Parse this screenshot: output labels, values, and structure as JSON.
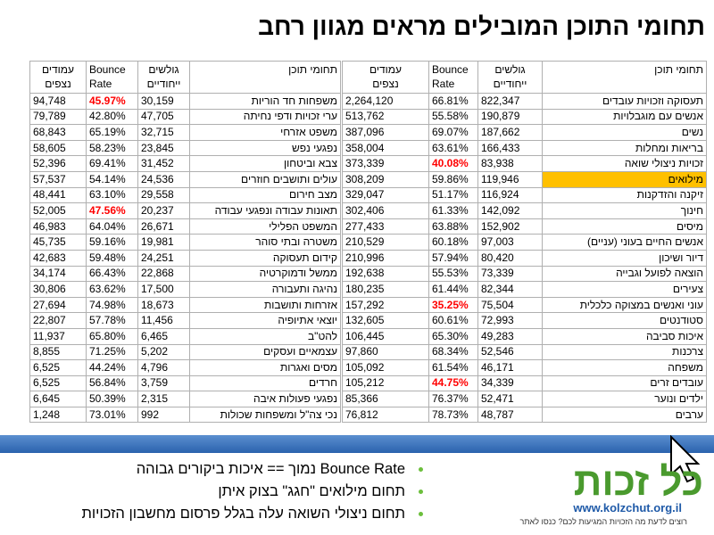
{
  "title": "תחומי התוכן המובילים מראים מגוון רחב",
  "alert_color": "#ff0000",
  "highlight_color": "#ffc000",
  "tables": [
    {
      "header": [
        [
          "תחומי תוכן"
        ],
        [
          "גולשים",
          "ייחודיים"
        ],
        [
          "Bounce",
          "Rate"
        ],
        [
          "עמודים",
          "נצפים"
        ]
      ],
      "alert_rows": [
        4,
        13,
        18
      ],
      "highlight_rows": [
        5
      ],
      "rows": [
        [
          "תעסוקה וזכויות עובדים",
          "822,347",
          "66.81%",
          "2,264,120"
        ],
        [
          "אנשים עם מוגבלויות",
          "190,879",
          "55.58%",
          "513,762"
        ],
        [
          "נשים",
          "187,662",
          "69.07%",
          "387,096"
        ],
        [
          "בריאות ומחלות",
          "166,433",
          "63.61%",
          "358,004"
        ],
        [
          "זכויות ניצולי שואה",
          "83,938",
          "40.08%",
          "373,339"
        ],
        [
          "מילואים",
          "119,946",
          "59.86%",
          "308,209"
        ],
        [
          "זיקנה והזדקנות",
          "116,924",
          "51.17%",
          "329,047"
        ],
        [
          "חינוך",
          "142,092",
          "61.33%",
          "302,406"
        ],
        [
          "מיסים",
          "152,902",
          "63.88%",
          "277,433"
        ],
        [
          "אנשים החיים בעוני (עניים)",
          "97,003",
          "60.18%",
          "210,529"
        ],
        [
          "דיור ושיכון",
          "80,420",
          "57.94%",
          "210,996"
        ],
        [
          "הוצאה לפועל וגבייה",
          "73,339",
          "55.53%",
          "192,638"
        ],
        [
          "צעירים",
          "82,344",
          "61.44%",
          "180,235"
        ],
        [
          "עוני ואנשים במצוקה כלכלית",
          "75,504",
          "35.25%",
          "157,292"
        ],
        [
          "סטודנטים",
          "72,993",
          "60.61%",
          "132,605"
        ],
        [
          "איכות סביבה",
          "49,283",
          "65.30%",
          "106,445"
        ],
        [
          "צרכנות",
          "52,546",
          "68.34%",
          "97,860"
        ],
        [
          "משפחה",
          "46,171",
          "61.54%",
          "105,092"
        ],
        [
          "עובדים זרים",
          "34,339",
          "44.75%",
          "105,212"
        ],
        [
          "ילדים ונוער",
          "52,471",
          "76.37%",
          "85,366"
        ],
        [
          "ערבים",
          "48,787",
          "78.73%",
          "76,812"
        ]
      ]
    },
    {
      "header": [
        [
          "תחומי תוכן"
        ],
        [
          "גולשים",
          "ייחודיים"
        ],
        [
          "Bounce",
          "Rate"
        ],
        [
          "עמודים",
          "נצפים"
        ]
      ],
      "alert_rows": [
        0,
        7
      ],
      "highlight_rows": [],
      "rows": [
        [
          "משפחות חד הוריות",
          "30,159",
          "45.97%",
          "94,748"
        ],
        [
          "ערי זכויות ודפי נחיתה",
          "47,705",
          "42.80%",
          "79,789"
        ],
        [
          "משפט אזרחי",
          "32,715",
          "65.19%",
          "68,843"
        ],
        [
          "נפגעי נפש",
          "23,845",
          "58.23%",
          "58,605"
        ],
        [
          "צבא וביטחון",
          "31,452",
          "69.41%",
          "52,396"
        ],
        [
          "עולים ותושבים חוזרים",
          "24,536",
          "54.14%",
          "57,537"
        ],
        [
          "מצב חירום",
          "29,558",
          "63.10%",
          "48,441"
        ],
        [
          "תאונות עבודה ונפגעי עבודה",
          "20,237",
          "47.56%",
          "52,005"
        ],
        [
          "המשפט הפלילי",
          "26,671",
          "64.04%",
          "46,983"
        ],
        [
          "משטרה ובתי סוהר",
          "19,981",
          "59.16%",
          "45,735"
        ],
        [
          "קידום תעסוקה",
          "24,251",
          "59.48%",
          "42,683"
        ],
        [
          "ממשל ודמוקרטיה",
          "22,868",
          "66.43%",
          "34,174"
        ],
        [
          "נהיגה ותעבורה",
          "17,500",
          "63.62%",
          "30,806"
        ],
        [
          "אזרחות ותושבות",
          "18,673",
          "74.98%",
          "27,694"
        ],
        [
          "יוצאי אתיופיה",
          "11,456",
          "57.78%",
          "22,807"
        ],
        [
          "להט\"ב",
          "6,465",
          "65.80%",
          "11,937"
        ],
        [
          "עצמאיים ועסקים",
          "5,202",
          "71.25%",
          "8,855"
        ],
        [
          "מסים ואגרות",
          "4,796",
          "44.24%",
          "6,525"
        ],
        [
          "חרדים",
          "3,759",
          "56.84%",
          "6,525"
        ],
        [
          "נפגעי פעולות איבה",
          "2,315",
          "50.39%",
          "6,645"
        ],
        [
          "נכי צה\"ל ומשפחות שכולות",
          "992",
          "73.01%",
          "1,248"
        ]
      ]
    }
  ],
  "bullets": [
    "Bounce Rate נמוך == איכות ביקורים גבוהה",
    "תחום מילואים \"חגג\" בצוק איתן",
    "תחום ניצולי השואה עלה בגלל פרסום מחשבון הזכויות"
  ],
  "logo": {
    "name": "כל זכות",
    "url": "www.kolzchut.org.il",
    "tagline": "רוצים לדעת מה הזכויות המגיעות לכם? כנסו לאתר"
  }
}
